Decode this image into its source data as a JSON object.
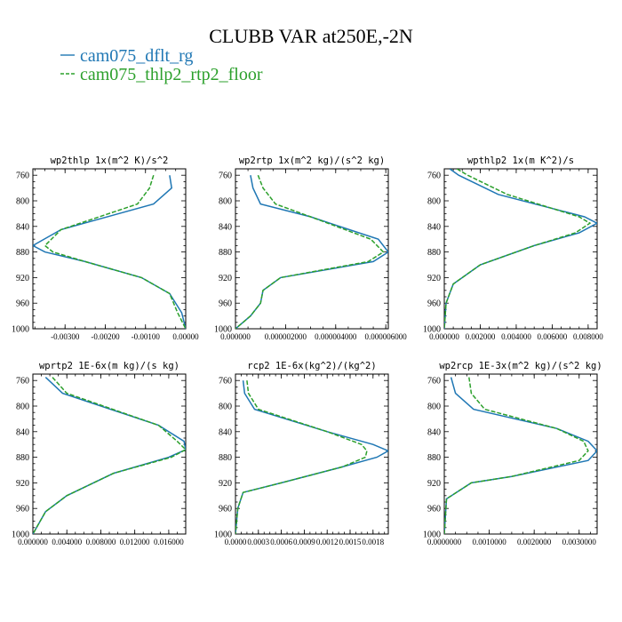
{
  "figure": {
    "title": "CLUBB VAR at250E,-2N",
    "legend": [
      {
        "label": "cam075_dflt_rg",
        "color": "#1f77b4",
        "dash": "solid"
      },
      {
        "label": "cam075_thlp2_rtp2_floor",
        "color": "#2ca02c",
        "dash": "dashed"
      }
    ]
  },
  "chart_data": [
    {
      "type": "line",
      "title": "wp2thlp  1x(m^2 K)/s^2",
      "ylim": [
        1000,
        750
      ],
      "yticks": [
        760,
        800,
        840,
        880,
        920,
        960,
        1000
      ],
      "xlim": [
        -0.0038,
        0.0
      ],
      "xticks": [
        -0.003,
        -0.002,
        -0.001,
        0.0
      ],
      "xtick_labels": [
        "-0.00300",
        "-0.00200",
        "-0.00100",
        "0.00000"
      ],
      "y": [
        760,
        780,
        805,
        845,
        870,
        880,
        895,
        920,
        945,
        975,
        1000
      ],
      "series": [
        {
          "name": "cam075_dflt_rg",
          "x": [
            -0.0004,
            -0.00035,
            -0.0008,
            -0.0031,
            -0.0038,
            -0.0035,
            -0.0025,
            -0.0011,
            -0.0004,
            -0.0001,
            0.0
          ]
        },
        {
          "name": "cam075_thlp2_rtp2_floor",
          "x": [
            -0.0008,
            -0.0009,
            -0.0012,
            -0.0031,
            -0.0035,
            -0.0033,
            -0.0025,
            -0.0011,
            -0.0004,
            -0.0002,
            0.0
          ]
        }
      ]
    },
    {
      "type": "line",
      "title": "wp2rtp  1x(m^2 kg)/(s^2 kg)",
      "ylim": [
        1000,
        750
      ],
      "yticks": [
        760,
        800,
        840,
        880,
        920,
        960,
        1000
      ],
      "xlim": [
        0.0,
        6.1e-06
      ],
      "xticks": [
        0.0,
        2e-06,
        4e-06,
        6e-06
      ],
      "xtick_labels": [
        "0.000000",
        "0.000002000",
        "0.000004000",
        "0.000006000"
      ],
      "y": [
        760,
        780,
        805,
        825,
        860,
        880,
        895,
        920,
        940,
        960,
        980,
        1000
      ],
      "series": [
        {
          "name": "cam075_dflt_rg",
          "x": [
            6e-07,
            7e-07,
            1e-06,
            3e-06,
            5.7e-06,
            6.1e-06,
            5.5e-06,
            1.8e-06,
            1.1e-06,
            1e-06,
            6e-07,
            0.0
          ]
        },
        {
          "name": "cam075_thlp2_rtp2_floor",
          "x": [
            9e-07,
            1.1e-06,
            1.6e-06,
            3e-06,
            5.4e-06,
            5.9e-06,
            5.3e-06,
            1.8e-06,
            1.1e-06,
            1e-06,
            6e-07,
            0.0
          ]
        }
      ]
    },
    {
      "type": "line",
      "title": "wpthlp2  1x(m K^2)/s",
      "ylim": [
        1000,
        750
      ],
      "yticks": [
        760,
        800,
        840,
        880,
        920,
        960,
        1000
      ],
      "xlim": [
        0.0,
        0.0085
      ],
      "xticks": [
        0.0,
        0.002,
        0.004,
        0.006,
        0.008
      ],
      "xtick_labels": [
        "0.000000",
        "0.002000",
        "0.004000",
        "0.006000",
        "0.008000"
      ],
      "y": [
        750,
        760,
        790,
        825,
        835,
        850,
        870,
        900,
        930,
        960,
        1000
      ],
      "series": [
        {
          "name": "cam075_dflt_rg",
          "x": [
            0.0003,
            0.0008,
            0.003,
            0.0078,
            0.0085,
            0.0075,
            0.005,
            0.002,
            0.0005,
            0.0001,
            0.0
          ]
        },
        {
          "name": "cam075_thlp2_rtp2_floor",
          "x": [
            0.0007,
            0.0013,
            0.0035,
            0.0075,
            0.0081,
            0.0073,
            0.005,
            0.002,
            0.0005,
            0.0001,
            0.0
          ]
        }
      ]
    },
    {
      "type": "line",
      "title": "wprtp2  1E-6x(m kg)/(s kg)",
      "ylim": [
        1000,
        750
      ],
      "yticks": [
        760,
        800,
        840,
        880,
        920,
        960,
        1000
      ],
      "xlim": [
        0.0,
        0.018
      ],
      "xticks": [
        0.0,
        0.004,
        0.008,
        0.012,
        0.016
      ],
      "xtick_labels": [
        "0.000000",
        "0.004000",
        "0.008000",
        "0.012000",
        "0.016000"
      ],
      "y": [
        755,
        780,
        830,
        855,
        868,
        880,
        905,
        940,
        965,
        1000
      ],
      "series": [
        {
          "name": "cam075_dflt_rg",
          "x": [
            0.0015,
            0.0035,
            0.0148,
            0.0178,
            0.018,
            0.016,
            0.0095,
            0.004,
            0.0015,
            0.0
          ]
        },
        {
          "name": "cam075_thlp2_rtp2_floor",
          "x": [
            0.0023,
            0.004,
            0.0148,
            0.017,
            0.018,
            0.0163,
            0.0095,
            0.004,
            0.0015,
            0.0
          ]
        }
      ]
    },
    {
      "type": "line",
      "title": "rcp2  1E-6x(kg^2)/(kg^2)",
      "ylim": [
        1000,
        750
      ],
      "yticks": [
        760,
        800,
        840,
        880,
        920,
        960,
        1000
      ],
      "xlim": [
        0.0,
        0.002
      ],
      "xticks": [
        0.0,
        0.0003,
        0.0006,
        0.0009,
        0.0012,
        0.0015,
        0.0018
      ],
      "xtick_labels": [
        "0.0000",
        "0.0003",
        "0.0006",
        "0.0009",
        "0.0012",
        "0.0015",
        "0.0018"
      ],
      "y": [
        760,
        780,
        805,
        840,
        860,
        870,
        880,
        895,
        920,
        935,
        960,
        1000
      ],
      "series": [
        {
          "name": "cam075_dflt_rg",
          "x": [
            0.0001,
            0.00012,
            0.00025,
            0.0012,
            0.0018,
            0.002,
            0.00185,
            0.0014,
            0.0006,
            0.0001,
            3e-05,
            0.0
          ]
        },
        {
          "name": "cam075_thlp2_rtp2_floor",
          "x": [
            0.00015,
            0.00017,
            0.0003,
            0.0012,
            0.00165,
            0.00172,
            0.0017,
            0.0014,
            0.0006,
            0.0001,
            3e-05,
            0.0
          ]
        }
      ]
    },
    {
      "type": "line",
      "title": "wp2rcp  1E-3x(m^2 kg)/(s^2 kg)",
      "ylim": [
        1000,
        750
      ],
      "yticks": [
        760,
        800,
        840,
        880,
        920,
        960,
        1000
      ],
      "xlim": [
        0.0,
        0.0034
      ],
      "xticks": [
        0.0,
        0.001,
        0.002,
        0.003
      ],
      "xtick_labels": [
        "0.0000000",
        "0.0010000",
        "0.0020000",
        "0.0030000"
      ],
      "y": [
        755,
        780,
        805,
        835,
        855,
        870,
        885,
        910,
        920,
        945,
        1000
      ],
      "series": [
        {
          "name": "cam075_dflt_rg",
          "x": [
            0.00015,
            0.00025,
            0.00065,
            0.0025,
            0.0032,
            0.0034,
            0.0032,
            0.0015,
            0.0006,
            5e-05,
            0.0
          ]
        },
        {
          "name": "cam075_thlp2_rtp2_floor",
          "x": [
            0.00055,
            0.0006,
            0.0009,
            0.0025,
            0.0031,
            0.0032,
            0.003,
            0.0015,
            0.0006,
            5e-05,
            0.0
          ]
        }
      ]
    }
  ]
}
